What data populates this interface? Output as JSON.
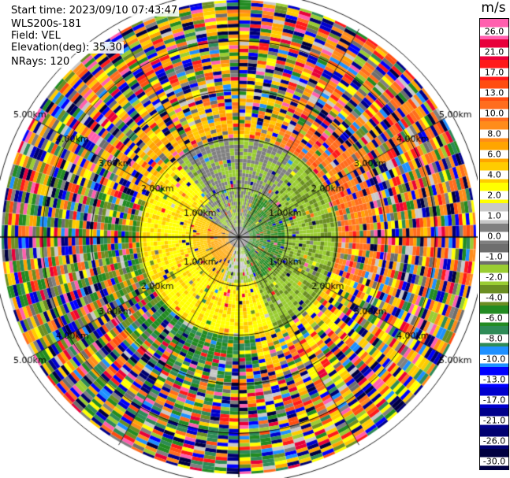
{
  "info": {
    "start_time": "Start time: 2023/09/10 07:43:47",
    "instrument": "WLS200s-181",
    "field": "Field: VEL",
    "elevation": "Elevation(deg): 35.30",
    "nrays": "NRays: 120"
  },
  "range_rings": [
    {
      "km": 1,
      "label": "1.00km"
    },
    {
      "km": 2,
      "label": "2.00km"
    },
    {
      "km": 3,
      "label": "3.00km"
    },
    {
      "km": 4,
      "label": "4.00km"
    },
    {
      "km": 5,
      "label": "5.00km"
    }
  ],
  "colorbar": {
    "unit": "m/s",
    "levels": [
      {
        "label": "26.0",
        "color": "#ff5fae"
      },
      {
        "label": "21.0",
        "color": "#e8003a"
      },
      {
        "label": "17.0",
        "color": "#ff1a1a"
      },
      {
        "label": "13.0",
        "color": "#ff4d10"
      },
      {
        "label": "10.0",
        "color": "#ff6d1e"
      },
      {
        "label": "8.0",
        "color": "#ff8c1a"
      },
      {
        "label": "6.0",
        "color": "#ffa500"
      },
      {
        "label": "4.0",
        "color": "#ffcc00"
      },
      {
        "label": "2.0",
        "color": "#ffff00"
      },
      {
        "label": "1.0",
        "color": "#c8c8c8"
      },
      {
        "label": "0.0",
        "color": "#808080"
      },
      {
        "label": "-1.0",
        "color": "#6e6e6e"
      },
      {
        "label": "-2.0",
        "color": "#9acd32"
      },
      {
        "label": "-4.0",
        "color": "#6b8e23"
      },
      {
        "label": "-6.0",
        "color": "#228b22"
      },
      {
        "label": "-8.0",
        "color": "#2e8b57"
      },
      {
        "label": "-10.0",
        "color": "#1e90ff"
      },
      {
        "label": "-13.0",
        "color": "#0000ff"
      },
      {
        "label": "-17.0",
        "color": "#0000cd"
      },
      {
        "label": "-21.0",
        "color": "#00008b"
      },
      {
        "label": "-26.0",
        "color": "#000070"
      },
      {
        "label": "-30.0",
        "color": "#000040"
      }
    ]
  }
}
